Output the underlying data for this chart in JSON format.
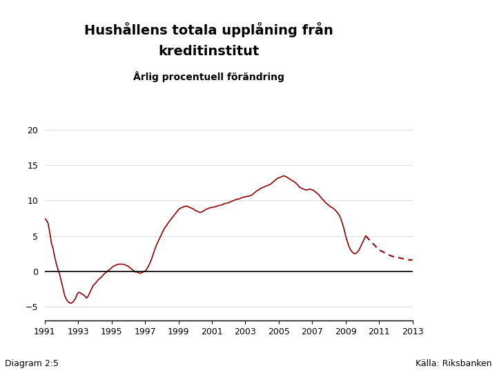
{
  "title_line1": "Hushållens totala upplåning från",
  "title_line2": "kreditinstitut",
  "subtitle": "Årlig procentuell förändring",
  "diagram_label": "Diagram 2:5",
  "source_label": "Källa: Riksbanken",
  "line_color": "#8B0000",
  "background_color": "#FFFFFF",
  "footer_bar_color": "#003399",
  "xlim": [
    1991,
    2013
  ],
  "ylim": [
    -7,
    22
  ],
  "yticks": [
    -5,
    0,
    5,
    10,
    15,
    20
  ],
  "xticks": [
    1991,
    1993,
    1995,
    1997,
    1999,
    2001,
    2003,
    2005,
    2007,
    2009,
    2011,
    2013
  ],
  "solid_data": {
    "x": [
      1991.0,
      1991.1,
      1991.2,
      1991.3,
      1991.4,
      1991.5,
      1991.6,
      1991.7,
      1991.8,
      1991.9,
      1992.0,
      1992.1,
      1992.2,
      1992.3,
      1992.4,
      1992.5,
      1992.6,
      1992.7,
      1992.8,
      1992.9,
      1993.0,
      1993.1,
      1993.2,
      1993.3,
      1993.4,
      1993.5,
      1993.6,
      1993.7,
      1993.8,
      1993.9,
      1994.0,
      1994.1,
      1994.2,
      1994.3,
      1994.4,
      1994.5,
      1994.6,
      1994.7,
      1994.8,
      1994.9,
      1995.0,
      1995.1,
      1995.2,
      1995.3,
      1995.4,
      1995.5,
      1995.6,
      1995.7,
      1995.8,
      1995.9,
      1996.0,
      1996.1,
      1996.2,
      1996.3,
      1996.4,
      1996.5,
      1996.6,
      1996.7,
      1996.8,
      1996.9,
      1997.0,
      1997.1,
      1997.2,
      1997.3,
      1997.4,
      1997.5,
      1997.6,
      1997.7,
      1997.8,
      1997.9,
      1998.0,
      1998.1,
      1998.2,
      1998.3,
      1998.4,
      1998.5,
      1998.6,
      1998.7,
      1998.8,
      1998.9,
      1999.0,
      1999.1,
      1999.2,
      1999.3,
      1999.4,
      1999.5,
      1999.6,
      1999.7,
      1999.8,
      1999.9,
      2000.0,
      2000.1,
      2000.2,
      2000.3,
      2000.4,
      2000.5,
      2000.6,
      2000.7,
      2000.8,
      2000.9,
      2001.0,
      2001.1,
      2001.2,
      2001.3,
      2001.4,
      2001.5,
      2001.6,
      2001.7,
      2001.8,
      2001.9,
      2002.0,
      2002.1,
      2002.2,
      2002.3,
      2002.4,
      2002.5,
      2002.6,
      2002.7,
      2002.8,
      2002.9,
      2003.0,
      2003.1,
      2003.2,
      2003.3,
      2003.4,
      2003.5,
      2003.6,
      2003.7,
      2003.8,
      2003.9,
      2004.0,
      2004.1,
      2004.2,
      2004.3,
      2004.4,
      2004.5,
      2004.6,
      2004.7,
      2004.8,
      2004.9,
      2005.0,
      2005.1,
      2005.2,
      2005.3,
      2005.4,
      2005.5,
      2005.6,
      2005.7,
      2005.8,
      2005.9,
      2006.0,
      2006.1,
      2006.2,
      2006.3,
      2006.4,
      2006.5,
      2006.6,
      2006.7,
      2006.8,
      2006.9,
      2007.0,
      2007.1,
      2007.2,
      2007.3,
      2007.4,
      2007.5,
      2007.6,
      2007.7,
      2007.8,
      2007.9,
      2008.0,
      2008.1,
      2008.2,
      2008.3,
      2008.4,
      2008.5,
      2008.6,
      2008.7,
      2008.8,
      2008.9,
      2009.0,
      2009.1,
      2009.2,
      2009.3,
      2009.4,
      2009.5,
      2009.6,
      2009.7,
      2009.8,
      2009.9,
      2010.0,
      2010.1,
      2010.2
    ],
    "y": [
      7.5,
      7.2,
      6.8,
      5.5,
      4.0,
      3.2,
      2.0,
      1.0,
      0.2,
      -0.5,
      -1.5,
      -2.5,
      -3.5,
      -4.0,
      -4.3,
      -4.5,
      -4.5,
      -4.3,
      -4.0,
      -3.5,
      -3.0,
      -3.0,
      -3.2,
      -3.3,
      -3.5,
      -3.8,
      -3.5,
      -3.0,
      -2.5,
      -2.0,
      -1.8,
      -1.5,
      -1.2,
      -1.0,
      -0.8,
      -0.5,
      -0.3,
      -0.1,
      0.1,
      0.3,
      0.5,
      0.7,
      0.8,
      0.9,
      1.0,
      1.0,
      1.0,
      1.0,
      0.9,
      0.8,
      0.7,
      0.5,
      0.3,
      0.1,
      -0.1,
      -0.1,
      -0.2,
      -0.3,
      -0.2,
      -0.1,
      0.0,
      0.3,
      0.7,
      1.2,
      1.8,
      2.5,
      3.2,
      3.8,
      4.3,
      4.8,
      5.3,
      5.8,
      6.2,
      6.5,
      6.9,
      7.2,
      7.5,
      7.8,
      8.1,
      8.4,
      8.7,
      8.9,
      9.0,
      9.1,
      9.2,
      9.2,
      9.1,
      9.0,
      8.9,
      8.8,
      8.6,
      8.5,
      8.4,
      8.3,
      8.4,
      8.5,
      8.7,
      8.8,
      8.9,
      9.0,
      9.0,
      9.1,
      9.1,
      9.2,
      9.3,
      9.3,
      9.4,
      9.5,
      9.6,
      9.6,
      9.7,
      9.8,
      9.9,
      10.0,
      10.1,
      10.2,
      10.2,
      10.3,
      10.4,
      10.5,
      10.5,
      10.6,
      10.6,
      10.7,
      10.8,
      11.0,
      11.2,
      11.4,
      11.5,
      11.7,
      11.8,
      11.9,
      12.0,
      12.1,
      12.2,
      12.3,
      12.5,
      12.7,
      12.9,
      13.1,
      13.2,
      13.3,
      13.4,
      13.5,
      13.4,
      13.3,
      13.1,
      13.0,
      12.8,
      12.7,
      12.5,
      12.3,
      12.0,
      11.8,
      11.7,
      11.6,
      11.5,
      11.5,
      11.6,
      11.6,
      11.5,
      11.4,
      11.2,
      11.0,
      10.8,
      10.5,
      10.2,
      10.0,
      9.7,
      9.5,
      9.3,
      9.1,
      9.0,
      8.8,
      8.6,
      8.3,
      8.0,
      7.5,
      6.8,
      6.0,
      5.0,
      4.2,
      3.5,
      3.0,
      2.7,
      2.5,
      2.5,
      2.7,
      3.0,
      3.5,
      4.0,
      4.5,
      5.0
    ]
  },
  "dashed_data": {
    "x": [
      2010.2,
      2010.4,
      2010.6,
      2010.8,
      2011.0,
      2011.2,
      2011.4,
      2011.6,
      2011.8,
      2012.0,
      2012.2,
      2012.4,
      2012.6,
      2012.8,
      2013.0
    ],
    "y": [
      5.0,
      4.5,
      4.0,
      3.5,
      3.0,
      2.8,
      2.5,
      2.3,
      2.1,
      2.0,
      1.9,
      1.8,
      1.7,
      1.6,
      1.6
    ]
  }
}
